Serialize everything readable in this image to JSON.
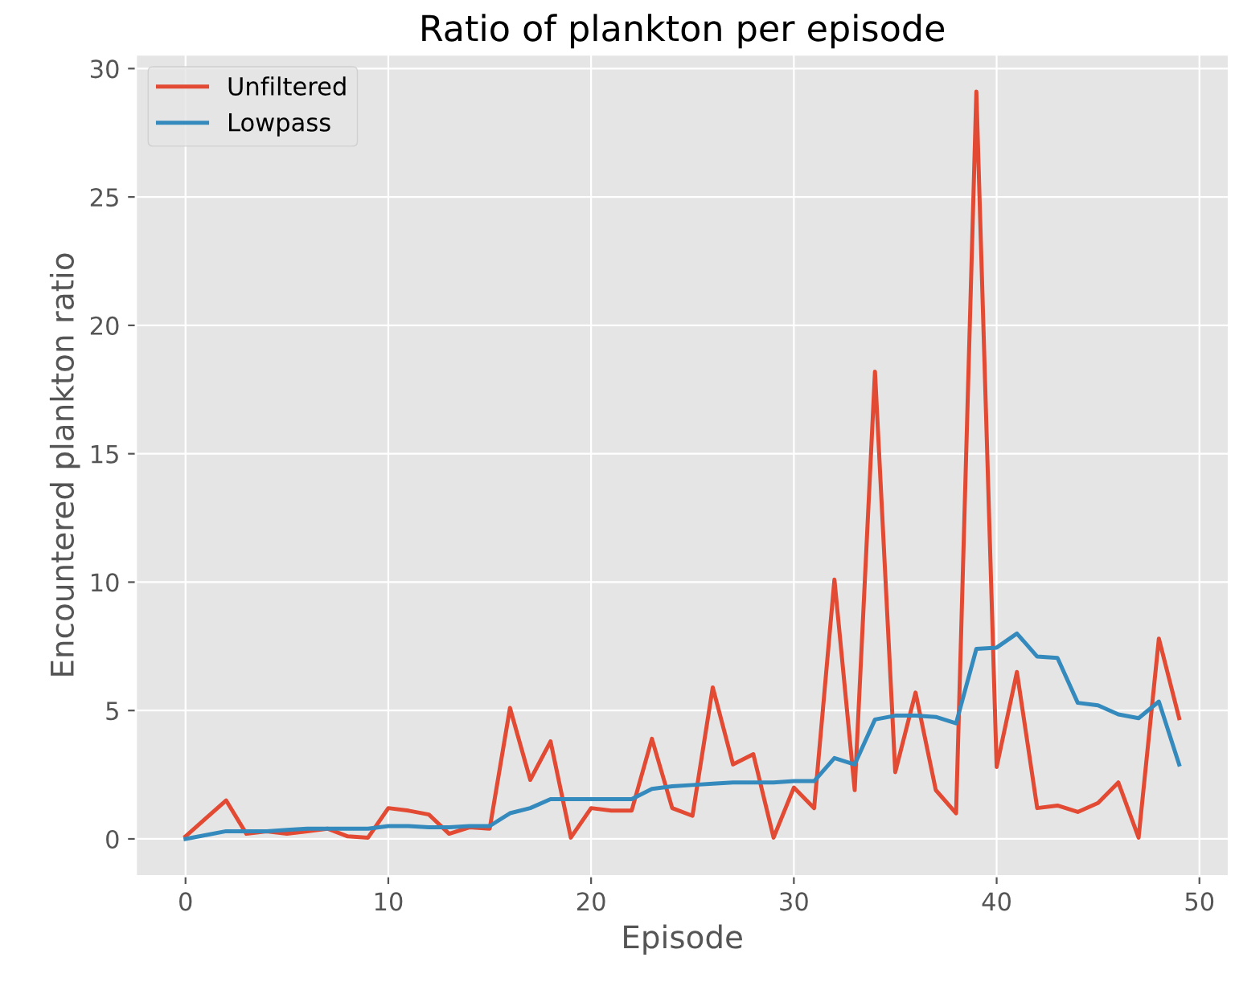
{
  "chart_data": {
    "type": "line",
    "title": "Ratio of plankton per episode",
    "xlabel": "Episode",
    "ylabel": "Encountered plankton ratio",
    "x": [
      0,
      1,
      2,
      3,
      4,
      5,
      6,
      7,
      8,
      9,
      10,
      11,
      12,
      13,
      14,
      15,
      16,
      17,
      18,
      19,
      20,
      21,
      22,
      23,
      24,
      25,
      26,
      27,
      28,
      29,
      30,
      31,
      32,
      33,
      34,
      35,
      36,
      37,
      38,
      39,
      40,
      41,
      42,
      43,
      44,
      45,
      46,
      47,
      48,
      49
    ],
    "series": [
      {
        "name": "Unfiltered",
        "color": "#e24a33",
        "values": [
          0.1,
          0.8,
          1.5,
          0.2,
          0.3,
          0.2,
          0.3,
          0.4,
          0.1,
          0.05,
          1.2,
          1.1,
          0.95,
          0.2,
          0.45,
          0.4,
          5.1,
          2.3,
          3.8,
          0.05,
          1.2,
          1.1,
          1.1,
          3.9,
          1.2,
          0.9,
          5.9,
          2.9,
          3.3,
          0.05,
          2.0,
          1.2,
          10.1,
          1.9,
          18.2,
          2.6,
          5.7,
          1.9,
          1.0,
          29.1,
          2.8,
          6.5,
          1.2,
          1.3,
          1.05,
          1.4,
          2.2,
          0.05,
          7.8,
          4.7
        ]
      },
      {
        "name": "Lowpass",
        "color": "#348abd",
        "values": [
          0.0,
          0.15,
          0.3,
          0.3,
          0.3,
          0.35,
          0.4,
          0.4,
          0.4,
          0.4,
          0.5,
          0.5,
          0.45,
          0.45,
          0.5,
          0.5,
          1.0,
          1.2,
          1.55,
          1.55,
          1.55,
          1.55,
          1.55,
          1.95,
          2.05,
          2.1,
          2.15,
          2.2,
          2.2,
          2.2,
          2.25,
          2.25,
          3.15,
          2.9,
          4.65,
          4.8,
          4.8,
          4.75,
          4.5,
          7.4,
          7.45,
          8.0,
          7.1,
          7.05,
          5.3,
          5.2,
          4.85,
          4.7,
          5.35,
          2.9
        ]
      }
    ],
    "xlim": [
      -2.45,
      51.45
    ],
    "ylim": [
      -1.45,
      30.55
    ],
    "xticks": [
      0,
      10,
      20,
      30,
      40,
      50
    ],
    "yticks": [
      0,
      5,
      10,
      15,
      20,
      25,
      30
    ],
    "grid": true,
    "legend": "top left",
    "marker": "none",
    "line_style": "solid"
  }
}
